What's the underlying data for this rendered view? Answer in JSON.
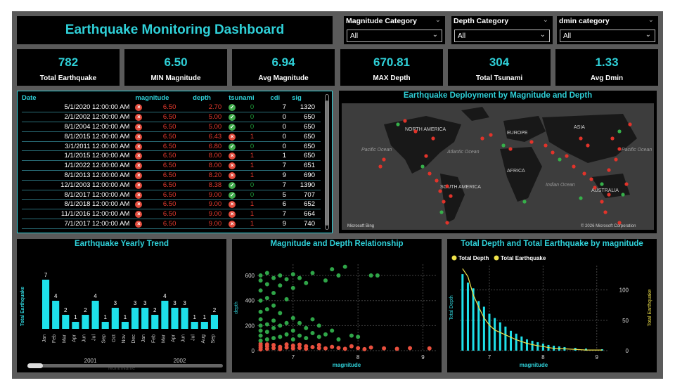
{
  "title": "Earthquake Monitoring Dashboard",
  "slicers": [
    {
      "label": "Magnitude Category",
      "value": "All"
    },
    {
      "label": "Depth Category",
      "value": "All"
    },
    {
      "label": "dmin category",
      "value": "All"
    }
  ],
  "kpis": [
    {
      "value": "782",
      "label": "Total Earthquake"
    },
    {
      "value": "6.50",
      "label": "MIN Magnitude"
    },
    {
      "value": "6.94",
      "label": "Avg Magnitude"
    },
    {
      "value": "670.81",
      "label": "MAX Depth"
    },
    {
      "value": "304",
      "label": "Total Tsunami"
    },
    {
      "value": "1.33",
      "label": "Avg Dmin"
    }
  ],
  "table": {
    "headers": [
      "Date",
      "magnitude",
      "depth",
      "tsunami",
      "cdi",
      "sig"
    ],
    "rows": [
      {
        "date": "5/1/2020 12:00:00 AM",
        "mag": "6.50",
        "depth": "2.70",
        "tsunami": "0",
        "cdi": "7",
        "sig": "1320"
      },
      {
        "date": "2/1/2002 12:00:00 AM",
        "mag": "6.50",
        "depth": "5.00",
        "tsunami": "0",
        "cdi": "0",
        "sig": "650"
      },
      {
        "date": "8/1/2004 12:00:00 AM",
        "mag": "6.50",
        "depth": "5.00",
        "tsunami": "0",
        "cdi": "0",
        "sig": "650"
      },
      {
        "date": "8/1/2015 12:00:00 AM",
        "mag": "6.50",
        "depth": "6.43",
        "tsunami": "1",
        "cdi": "0",
        "sig": "650"
      },
      {
        "date": "3/1/2011 12:00:00 AM",
        "mag": "6.50",
        "depth": "6.80",
        "tsunami": "0",
        "cdi": "0",
        "sig": "650"
      },
      {
        "date": "1/1/2015 12:00:00 AM",
        "mag": "6.50",
        "depth": "8.00",
        "tsunami": "1",
        "cdi": "1",
        "sig": "650"
      },
      {
        "date": "1/1/2022 12:00:00 AM",
        "mag": "6.50",
        "depth": "8.00",
        "tsunami": "1",
        "cdi": "7",
        "sig": "651"
      },
      {
        "date": "8/1/2013 12:00:00 AM",
        "mag": "6.50",
        "depth": "8.20",
        "tsunami": "1",
        "cdi": "9",
        "sig": "690"
      },
      {
        "date": "12/1/2003 12:00:00 AM",
        "mag": "6.50",
        "depth": "8.38",
        "tsunami": "0",
        "cdi": "7",
        "sig": "1390"
      },
      {
        "date": "8/1/2017 12:00:00 AM",
        "mag": "6.50",
        "depth": "9.00",
        "tsunami": "0",
        "cdi": "5",
        "sig": "707"
      },
      {
        "date": "8/1/2018 12:00:00 AM",
        "mag": "6.50",
        "depth": "9.00",
        "tsunami": "1",
        "cdi": "6",
        "sig": "652"
      },
      {
        "date": "11/1/2016 12:00:00 AM",
        "mag": "6.50",
        "depth": "9.00",
        "tsunami": "1",
        "cdi": "7",
        "sig": "664"
      },
      {
        "date": "7/1/2017 12:00:00 AM",
        "mag": "6.50",
        "depth": "9.00",
        "tsunami": "1",
        "cdi": "9",
        "sig": "740"
      }
    ]
  },
  "map": {
    "title": "Earthquake Deployment by Magnitude and Depth",
    "labels": [
      "NORTH AMERICA",
      "EUROPE",
      "ASIA",
      "AFRICA",
      "SOUTH AMERICA",
      "AUSTRALIA",
      "Pacific Ocean",
      "Atlantic Ocean",
      "Indian Ocean",
      "Pacific Ocean"
    ],
    "attribution": "© 2026 Microsoft Corporation",
    "brand": "Microsoft Bing"
  },
  "chart_data": [
    {
      "type": "bar",
      "title": "Earthquake Yearly Trend",
      "ylabel": "Total Earthquake",
      "xlabel": "MonthName",
      "categories": [
        "Jan",
        "Feb",
        "Mar",
        "Apr",
        "Jun",
        "Jul",
        "Sep",
        "Oct",
        "Nov",
        "Dec",
        "Jan",
        "Feb",
        "Mar",
        "Apr",
        "Jun",
        "Jul",
        "Aug",
        "Sep"
      ],
      "values": [
        7,
        4,
        2,
        1,
        2,
        4,
        1,
        3,
        1,
        3,
        3,
        2,
        4,
        3,
        3,
        1,
        1,
        2
      ],
      "groups": [
        {
          "label": "2001",
          "count": 10
        },
        {
          "label": "2002",
          "count": 8
        }
      ],
      "color": "#1ee0ea"
    },
    {
      "type": "scatter",
      "title": "Magnitude and Depth Relationship",
      "xlabel": "magnitude",
      "ylabel": "depth",
      "xticks": [
        "7",
        "8",
        "9"
      ],
      "yticks": [
        "0",
        "200",
        "400",
        "600"
      ],
      "xlim": [
        6.45,
        9.2
      ],
      "ylim": [
        0,
        690
      ],
      "colors": {
        "shallow": "#e9503e",
        "deep": "#2fa548"
      },
      "series": [
        {
          "category": "shallow",
          "points": [
            [
              6.5,
              10
            ],
            [
              6.5,
              25
            ],
            [
              6.5,
              40
            ],
            [
              6.5,
              55
            ],
            [
              6.6,
              15
            ],
            [
              6.6,
              35
            ],
            [
              6.6,
              50
            ],
            [
              6.7,
              20
            ],
            [
              6.7,
              45
            ],
            [
              6.8,
              12
            ],
            [
              6.8,
              30
            ],
            [
              6.9,
              25
            ],
            [
              6.9,
              50
            ],
            [
              7.0,
              18
            ],
            [
              7.0,
              40
            ],
            [
              7.1,
              22
            ],
            [
              7.1,
              48
            ],
            [
              7.2,
              15
            ],
            [
              7.2,
              35
            ],
            [
              7.3,
              28
            ],
            [
              7.4,
              20
            ],
            [
              7.4,
              45
            ],
            [
              7.5,
              18
            ],
            [
              7.6,
              30
            ],
            [
              7.7,
              22
            ],
            [
              7.8,
              15
            ],
            [
              7.9,
              35
            ],
            [
              8.0,
              20
            ],
            [
              8.1,
              12
            ],
            [
              8.2,
              25
            ],
            [
              8.4,
              18
            ],
            [
              8.6,
              15
            ],
            [
              8.8,
              20
            ],
            [
              9.1,
              18
            ]
          ]
        },
        {
          "category": "deep",
          "points": [
            [
              6.5,
              80
            ],
            [
              6.5,
              120
            ],
            [
              6.5,
              160
            ],
            [
              6.5,
              200
            ],
            [
              6.5,
              250
            ],
            [
              6.5,
              310
            ],
            [
              6.5,
              400
            ],
            [
              6.5,
              480
            ],
            [
              6.5,
              560
            ],
            [
              6.5,
              600
            ],
            [
              6.6,
              90
            ],
            [
              6.6,
              150
            ],
            [
              6.6,
              210
            ],
            [
              6.6,
              330
            ],
            [
              6.6,
              420
            ],
            [
              6.6,
              530
            ],
            [
              6.6,
              620
            ],
            [
              6.7,
              100
            ],
            [
              6.7,
              180
            ],
            [
              6.7,
              240
            ],
            [
              6.7,
              360
            ],
            [
              6.7,
              460
            ],
            [
              6.7,
              580
            ],
            [
              6.8,
              110
            ],
            [
              6.8,
              200
            ],
            [
              6.8,
              300
            ],
            [
              6.8,
              520
            ],
            [
              6.8,
              600
            ],
            [
              6.9,
              130
            ],
            [
              6.9,
              220
            ],
            [
              6.9,
              410
            ],
            [
              6.9,
              570
            ],
            [
              7.0,
              90
            ],
            [
              7.0,
              160
            ],
            [
              7.0,
              260
            ],
            [
              7.0,
              500
            ],
            [
              7.0,
              610
            ],
            [
              7.1,
              120
            ],
            [
              7.1,
              220
            ],
            [
              7.1,
              580
            ],
            [
              7.2,
              100
            ],
            [
              7.2,
              180
            ],
            [
              7.2,
              540
            ],
            [
              7.3,
              140
            ],
            [
              7.3,
              250
            ],
            [
              7.3,
              620
            ],
            [
              7.4,
              110
            ],
            [
              7.4,
              200
            ],
            [
              7.5,
              130
            ],
            [
              7.5,
              560
            ],
            [
              7.6,
              160
            ],
            [
              7.6,
              650
            ],
            [
              7.7,
              90
            ],
            [
              7.7,
              600
            ],
            [
              7.8,
              670
            ],
            [
              7.9,
              120
            ],
            [
              8.0,
              110
            ],
            [
              8.2,
              600
            ],
            [
              8.3,
              600
            ]
          ]
        }
      ]
    },
    {
      "type": "bar",
      "title": "Total Depth and Total Earthquake by magnitude",
      "xlabel": "magnitude",
      "ylabel": "Total Depth",
      "y2label": "Total Earthquake",
      "legend": [
        {
          "name": "Total Depth",
          "color": "#f0e24a"
        },
        {
          "name": "Total Earthquake",
          "color": "#f0e24a"
        }
      ],
      "xticks": [
        "7",
        "8",
        "9"
      ],
      "y2ticks": [
        "0",
        "50",
        "100"
      ],
      "x": [
        6.5,
        6.6,
        6.7,
        6.8,
        6.9,
        7.0,
        7.1,
        7.2,
        7.3,
        7.4,
        7.5,
        7.6,
        7.7,
        7.8,
        7.9,
        8.0,
        8.1,
        8.2,
        8.3,
        8.4,
        8.6,
        8.8,
        9.1
      ],
      "bars": [
        108,
        96,
        88,
        70,
        62,
        52,
        46,
        40,
        34,
        28,
        24,
        20,
        16,
        14,
        12,
        10,
        8,
        7,
        6,
        5,
        4,
        3,
        2
      ],
      "line": [
        135,
        122,
        92,
        72,
        54,
        42,
        34,
        30,
        26,
        22,
        18,
        15,
        12,
        10,
        8,
        7,
        5,
        4,
        3,
        3,
        2,
        1,
        1
      ],
      "y2lim": [
        0,
        140
      ]
    }
  ]
}
